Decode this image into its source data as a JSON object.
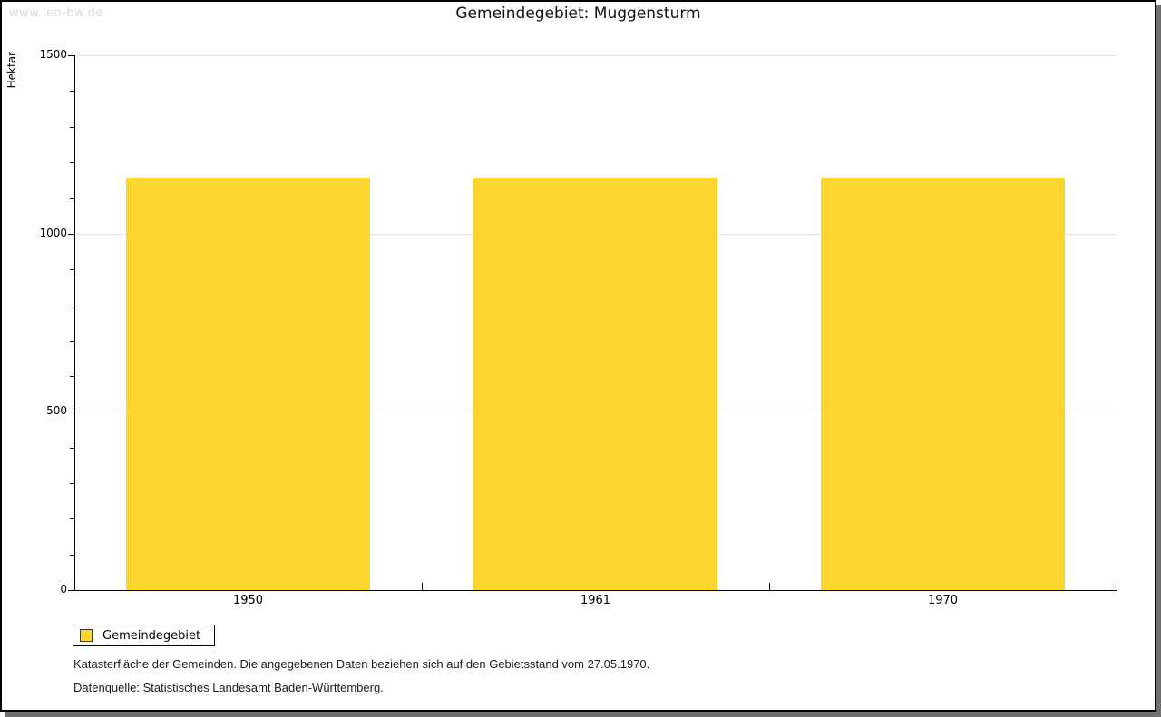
{
  "window": {
    "watermark": "www.leo-bw.de",
    "title": "Gemeindegebiet: Muggensturm"
  },
  "chart_data": {
    "type": "bar",
    "title": "Gemeindegebiet: Muggensturm",
    "categories": [
      "1950",
      "1961",
      "1970"
    ],
    "series": [
      {
        "name": "Gemeindegebiet",
        "values": [
          1158,
          1158,
          1158
        ]
      }
    ],
    "xlabel": "",
    "ylabel": "Hektar",
    "ylim": [
      0,
      1500
    ],
    "ytick_major": 500,
    "ytick_minor": 100,
    "ytick_labels": [
      "0",
      "500",
      "1000",
      "1500"
    ],
    "grid": "horizontal-major",
    "legend_position": "bottom-left",
    "bar_color": "#FDD52F",
    "gridline_color": "#e4e4e4",
    "axis_color": "#000000"
  },
  "legend": {
    "label": "Gemeindegebiet",
    "swatch_color": "#FDD52F"
  },
  "notes": {
    "line1": "Katasterfläche der Gemeinden. Die angegebenen Daten beziehen sich auf den Gebietsstand vom 27.05.1970.",
    "line2": "Datenquelle: Statistisches Landesamt Baden-Württemberg."
  }
}
